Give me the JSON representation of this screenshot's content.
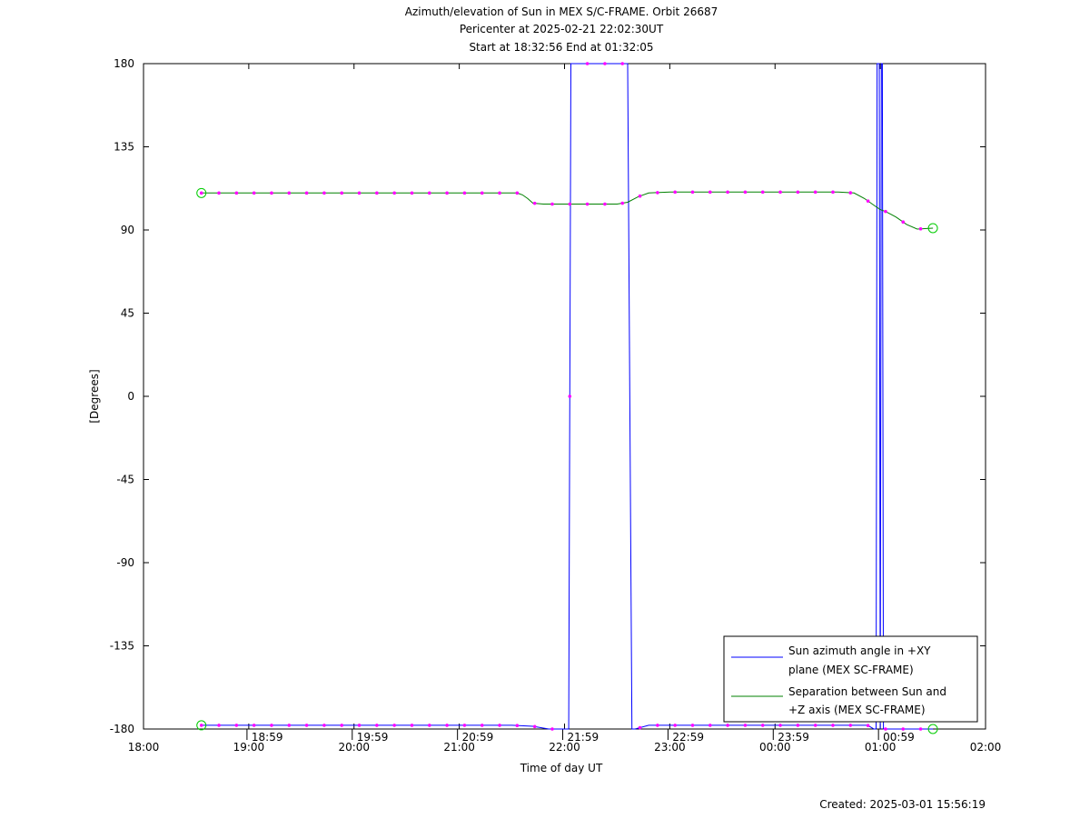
{
  "chart_data": {
    "type": "line",
    "title": "Azimuth/elevation of Sun in MEX S/C-FRAME.  Orbit 26687",
    "subtitle_lines": [
      "Pericenter at 2025-02-21 22:02:30UT",
      "Start at 18:32:56 End at 01:32:05"
    ],
    "xlabel": "Time of day UT",
    "ylabel": "[Degrees]",
    "x_unit": "hours since 18:00 UT",
    "xlim": [
      0,
      8
    ],
    "ylim": [
      -180,
      180
    ],
    "x_ticks": [
      {
        "value": 0,
        "label": "18:00"
      },
      {
        "value": 1,
        "label": "19:00"
      },
      {
        "value": 2,
        "label": "20:00"
      },
      {
        "value": 3,
        "label": "21:00"
      },
      {
        "value": 4,
        "label": "22:00"
      },
      {
        "value": 5,
        "label": "23:00"
      },
      {
        "value": 6,
        "label": "00:00"
      },
      {
        "value": 7,
        "label": "01:00"
      },
      {
        "value": 8,
        "label": "02:00"
      }
    ],
    "y_ticks": [
      {
        "value": 180,
        "label": "180"
      },
      {
        "value": 135,
        "label": "135"
      },
      {
        "value": 90,
        "label": "90"
      },
      {
        "value": 45,
        "label": "45"
      },
      {
        "value": 0,
        "label": "0"
      },
      {
        "value": -45,
        "label": "-45"
      },
      {
        "value": -90,
        "label": "-90"
      },
      {
        "value": -135,
        "label": "-135"
      },
      {
        "value": -180,
        "label": "-180"
      }
    ],
    "bottom_marker_labels": [
      {
        "value": 0.983,
        "label": "18:59"
      },
      {
        "value": 1.983,
        "label": "19:59"
      },
      {
        "value": 2.983,
        "label": "20:59"
      },
      {
        "value": 3.983,
        "label": "21:59"
      },
      {
        "value": 4.983,
        "label": "22:59"
      },
      {
        "value": 5.983,
        "label": "23:59"
      },
      {
        "value": 6.983,
        "label": "00:59"
      }
    ],
    "grid": false,
    "legend_position": "bottom-right",
    "series": [
      {
        "name": "Sun azimuth angle in +XY plane (MEX SC-FRAME)",
        "name_lines": [
          "Sun azimuth angle in +XY",
          "plane (MEX SC-FRAME)"
        ],
        "color": "#0000ff",
        "x": [
          0.55,
          1.0,
          2.0,
          3.0,
          3.5,
          3.7,
          3.85,
          3.97,
          4.04,
          4.06,
          4.1,
          4.15,
          4.4,
          4.58,
          4.6,
          4.64,
          4.67,
          4.8,
          5.0,
          6.0,
          6.7,
          6.88,
          6.94,
          6.96,
          6.97,
          6.98,
          6.99,
          7.0,
          7.01,
          7.02,
          7.03,
          7.04,
          7.06,
          7.15,
          7.3,
          7.5
        ],
        "y": [
          -178,
          -178,
          -178,
          -178,
          -178,
          -178.5,
          -180,
          -180,
          -180,
          180,
          180,
          180,
          180,
          180,
          180,
          -180,
          -180,
          -178,
          -178,
          -178,
          -178,
          -178,
          -180,
          -180,
          180,
          180,
          180,
          -180,
          180,
          180,
          -180,
          -180,
          -180,
          -180,
          -180,
          -180
        ]
      },
      {
        "name": "Separation between Sun and +Z axis (MEX SC-FRAME)",
        "name_lines": [
          "Separation between Sun and",
          "+Z axis (MEX SC-FRAME)"
        ],
        "color": "#008000",
        "x": [
          0.55,
          1.0,
          2.0,
          3.0,
          3.55,
          3.6,
          3.65,
          3.7,
          3.8,
          4.0,
          4.2,
          4.4,
          4.5,
          4.6,
          4.7,
          4.8,
          5.0,
          6.0,
          6.6,
          6.75,
          6.85,
          6.9,
          6.95,
          7.0,
          7.05,
          7.1,
          7.15,
          7.25,
          7.35,
          7.5
        ],
        "y": [
          110,
          110,
          110,
          110,
          110,
          109,
          107,
          104.5,
          104,
          104,
          104,
          104,
          104,
          105,
          108,
          110,
          110.5,
          110.5,
          110.5,
          110,
          107,
          105,
          103,
          101,
          100,
          98.5,
          97,
          93,
          90.5,
          91
        ]
      }
    ],
    "marker_color": "#ff00ff",
    "endpoint_marker_color": "#00cc00"
  },
  "footer": {
    "created": "Created: 2025-03-01 15:56:19"
  }
}
